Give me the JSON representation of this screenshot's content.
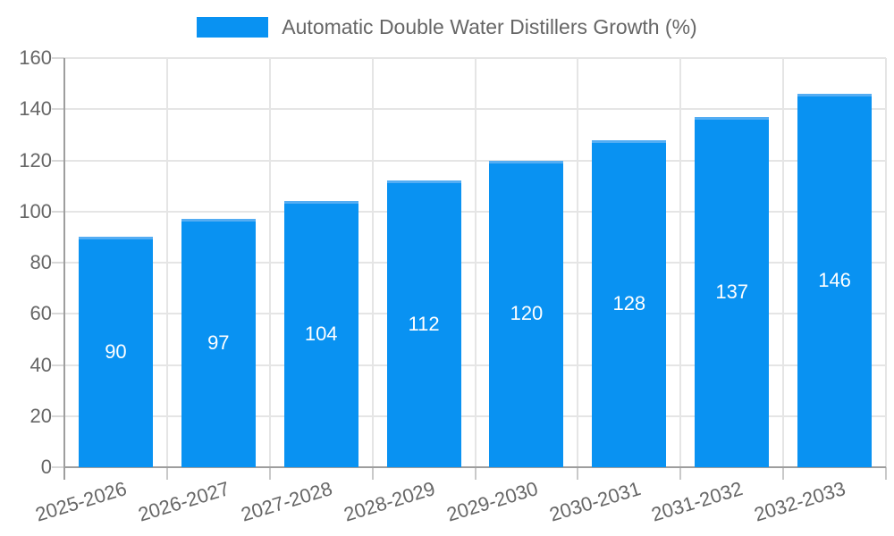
{
  "legend": {
    "label": "Automatic Double Water Distillers Growth (%)"
  },
  "colors": {
    "bar": "#0992f2",
    "bar_top_edge": "#54adf3",
    "grid": "#e5e5e5",
    "axis": "#9e9e9e",
    "y_tick": "#d8d8d8",
    "x_tick": "#c9c9c9",
    "text": "#666666",
    "value_label": "#ffffff",
    "background": "#ffffff"
  },
  "chart_data": {
    "type": "bar",
    "title": "Automatic Double Water Distillers Growth (%)",
    "categories": [
      "2025-2026",
      "2026-2027",
      "2027-2028",
      "2028-2029",
      "2029-2030",
      "2030-2031",
      "2031-2032",
      "2032-2033"
    ],
    "values": [
      90,
      97,
      104,
      112,
      120,
      128,
      137,
      146
    ],
    "xlabel": "",
    "ylabel": "",
    "ylim": [
      0,
      160
    ],
    "ytick_step": 20,
    "ytick_labels": [
      "0",
      "20",
      "40",
      "60",
      "80",
      "100",
      "120",
      "140",
      "160"
    ],
    "grid": true,
    "grid_vertical": true,
    "legend_position": "top-center",
    "value_labels_position": "inside-center",
    "x_tick_rotation_deg": -17
  }
}
